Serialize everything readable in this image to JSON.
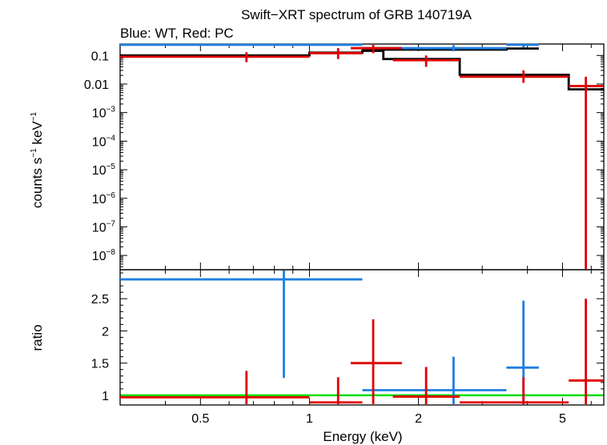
{
  "chart_data": [
    {
      "type": "scatter",
      "panel": "spectrum",
      "title": "Swift−XRT spectrum of GRB 140719A",
      "subtitle": "Blue: WT, Red: PC",
      "ylabel_parts": [
        "counts s",
        "−1",
        " keV",
        "−1"
      ],
      "xlabel": "",
      "xscale": "log",
      "yscale": "log",
      "xlim": [
        0.3,
        6.5
      ],
      "ylim_exp": [
        -8.5,
        -0.6
      ],
      "y_ticks": [
        {
          "exp": -1,
          "text": "0.1"
        },
        {
          "exp": -2,
          "text": "0.01"
        },
        {
          "exp": -3,
          "text": "10",
          "sup": "−3"
        },
        {
          "exp": -4,
          "text": "10",
          "sup": "−4"
        },
        {
          "exp": -5,
          "text": "10",
          "sup": "−5"
        },
        {
          "exp": -6,
          "text": "10",
          "sup": "−6"
        },
        {
          "exp": -7,
          "text": "10",
          "sup": "−7"
        },
        {
          "exp": -8,
          "text": "10",
          "sup": "−8"
        }
      ],
      "series": [
        {
          "color": "#1f7fe0",
          "points": [
            {
              "x": 0.85,
              "xlo": 0.3,
              "xhi": 1.4,
              "y": 0.3,
              "ylo": 0.22,
              "yhi": 0.42
            },
            {
              "x": 2.5,
              "xlo": 1.4,
              "xhi": 3.5,
              "y": 0.18,
              "ylo": 0.14,
              "yhi": 0.23
            },
            {
              "x": 3.9,
              "xlo": 3.5,
              "xhi": 4.3,
              "y": 0.28,
              "ylo": 0.19,
              "yhi": 0.4
            }
          ]
        },
        {
          "color": "#e00000",
          "points": [
            {
              "x": 0.67,
              "xlo": 0.3,
              "xhi": 1.0,
              "y": 0.09,
              "ylo": 0.058,
              "yhi": 0.13
            },
            {
              "x": 1.2,
              "xlo": 1.0,
              "xhi": 1.4,
              "y": 0.12,
              "ylo": 0.075,
              "yhi": 0.18
            },
            {
              "x": 1.5,
              "xlo": 1.3,
              "xhi": 1.8,
              "y": 0.18,
              "ylo": 0.12,
              "yhi": 0.26
            },
            {
              "x": 2.1,
              "xlo": 1.7,
              "xhi": 2.6,
              "y": 0.068,
              "ylo": 0.04,
              "yhi": 0.1
            },
            {
              "x": 3.9,
              "xlo": 2.6,
              "xhi": 5.2,
              "y": 0.018,
              "ylo": 0.011,
              "yhi": 0.03
            },
            {
              "x": 5.8,
              "xlo": 5.2,
              "xhi": 6.5,
              "y": 0.0085,
              "ylo": 3e-09,
              "yhi": 0.018
            }
          ]
        }
      ],
      "models": [
        {
          "color": "#000000",
          "steps": [
            [
              0.3,
              0.1
            ],
            [
              1.0,
              0.125
            ],
            [
              1.4,
              0.145
            ],
            [
              1.6,
              0.075
            ],
            [
              2.6,
              0.021
            ],
            [
              5.2,
              0.0065
            ],
            [
              6.5,
              0.0065
            ]
          ]
        },
        {
          "color": "#000000",
          "steps": [
            [
              1.4,
              0.16
            ],
            [
              3.5,
              0.175
            ],
            [
              4.3,
              0.175
            ]
          ]
        }
      ]
    },
    {
      "type": "scatter",
      "panel": "ratio",
      "xlabel": "Energy (keV)",
      "ylabel": "ratio",
      "xscale": "log",
      "xlim": [
        0.3,
        6.5
      ],
      "ylim": [
        0.85,
        2.95
      ],
      "x_ticks": [
        {
          "x": 0.5,
          "text": "0.5"
        },
        {
          "x": 1,
          "text": "1"
        },
        {
          "x": 2,
          "text": "2"
        },
        {
          "x": 5,
          "text": "5"
        }
      ],
      "y_ticks": [
        {
          "y": 1,
          "text": "1"
        },
        {
          "y": 1.5,
          "text": "1.5"
        },
        {
          "y": 2,
          "text": "2"
        },
        {
          "y": 2.5,
          "text": "2.5"
        }
      ],
      "reference_line": {
        "y": 1,
        "color": "#00dd00"
      },
      "series": [
        {
          "color": "#1f7fe0",
          "points": [
            {
              "x": 0.85,
              "xlo": 0.3,
              "xhi": 1.4,
              "y": 2.8,
              "ylo": 1.27,
              "yhi": 2.95
            },
            {
              "x": 2.5,
              "xlo": 1.4,
              "xhi": 3.5,
              "y": 1.08,
              "ylo": 0.85,
              "yhi": 1.6
            },
            {
              "x": 3.9,
              "xlo": 3.5,
              "xhi": 4.3,
              "y": 1.43,
              "ylo": 0.85,
              "yhi": 2.47
            }
          ]
        },
        {
          "color": "#e00000",
          "points": [
            {
              "x": 0.67,
              "xlo": 0.3,
              "xhi": 1.0,
              "y": 0.97,
              "ylo": 0.85,
              "yhi": 1.38
            },
            {
              "x": 1.2,
              "xlo": 1.0,
              "xhi": 1.4,
              "y": 0.89,
              "ylo": 0.85,
              "yhi": 1.28
            },
            {
              "x": 1.5,
              "xlo": 1.3,
              "xhi": 1.8,
              "y": 1.5,
              "ylo": 0.85,
              "yhi": 2.18
            },
            {
              "x": 2.1,
              "xlo": 1.7,
              "xhi": 2.6,
              "y": 0.98,
              "ylo": 0.85,
              "yhi": 1.44
            },
            {
              "x": 3.9,
              "xlo": 2.6,
              "xhi": 5.2,
              "y": 0.89,
              "ylo": 0.85,
              "yhi": 1.28
            },
            {
              "x": 5.8,
              "xlo": 5.2,
              "xhi": 6.5,
              "y": 1.23,
              "ylo": 0.85,
              "yhi": 2.5
            }
          ]
        }
      ]
    }
  ]
}
